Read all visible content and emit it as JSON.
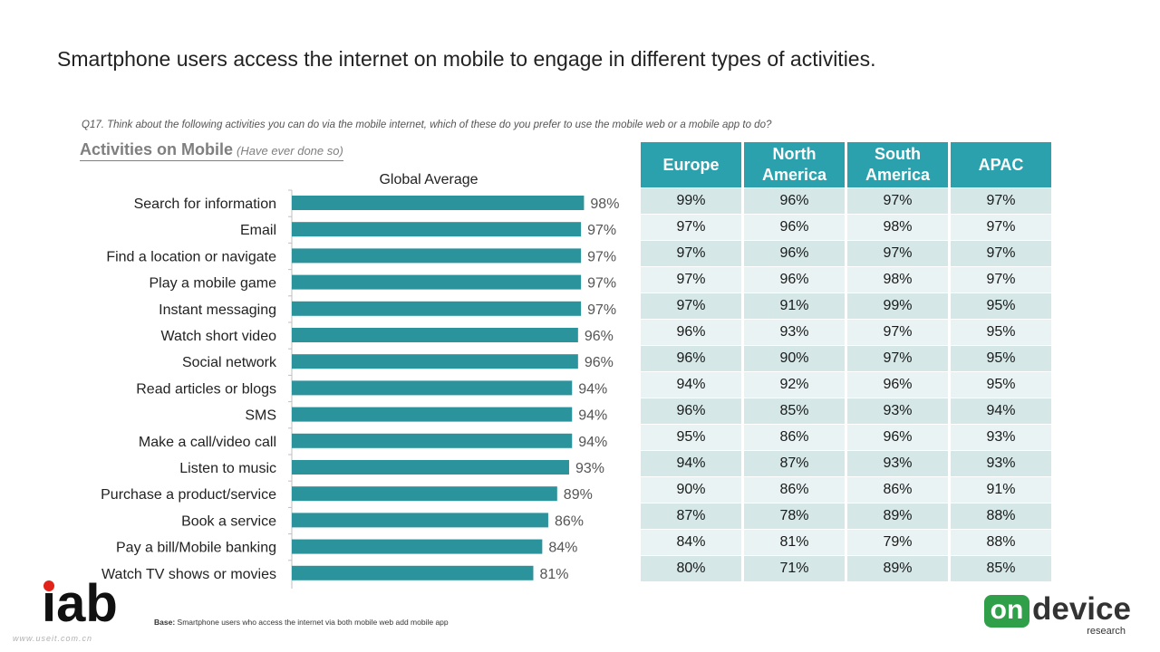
{
  "title": "Smartphone users access the internet on mobile to engage in different types of activities.",
  "question": "Q17. Think about the following activities you can do via the mobile internet, which of these do you prefer to use the mobile web or a mobile app to do?",
  "subtitle": {
    "main": "Activities on Mobile",
    "paren": "(Have ever done so)"
  },
  "colors": {
    "bar": "#2a939c",
    "table_header": "#2aa1ad",
    "row_odd": "#d5e7e7",
    "row_even": "#e9f3f3",
    "iab_dot": "#e2231a",
    "ondevice_green": "#2f9f4a"
  },
  "chart_data": {
    "type": "bar",
    "orientation": "horizontal",
    "title": "Global Average",
    "categories": [
      "Search for information",
      "Email",
      "Find a location or navigate",
      "Play a mobile game",
      "Instant messaging",
      "Watch short video",
      "Social network",
      "Read articles or blogs",
      "SMS",
      "Make a call/video call",
      "Listen to music",
      "Purchase a product/service",
      "Book a service",
      "Pay a bill/Mobile banking",
      "Watch TV shows or movies"
    ],
    "values": [
      98,
      97,
      97,
      97,
      97,
      96,
      96,
      94,
      94,
      94,
      93,
      89,
      86,
      84,
      81
    ],
    "value_labels": [
      "98%",
      "97%",
      "97%",
      "97%",
      "97%",
      "96%",
      "96%",
      "94%",
      "94%",
      "94%",
      "93%",
      "89%",
      "86%",
      "84%",
      "81%"
    ],
    "xlim": [
      0,
      100
    ]
  },
  "region_table": {
    "headers": [
      "Europe",
      "North America",
      "South America",
      "APAC"
    ],
    "rows": [
      [
        "99%",
        "96%",
        "97%",
        "97%"
      ],
      [
        "97%",
        "96%",
        "98%",
        "97%"
      ],
      [
        "97%",
        "96%",
        "97%",
        "97%"
      ],
      [
        "97%",
        "96%",
        "98%",
        "97%"
      ],
      [
        "97%",
        "91%",
        "99%",
        "95%"
      ],
      [
        "96%",
        "93%",
        "97%",
        "95%"
      ],
      [
        "96%",
        "90%",
        "97%",
        "95%"
      ],
      [
        "94%",
        "92%",
        "96%",
        "95%"
      ],
      [
        "96%",
        "85%",
        "93%",
        "94%"
      ],
      [
        "95%",
        "86%",
        "96%",
        "93%"
      ],
      [
        "94%",
        "87%",
        "93%",
        "93%"
      ],
      [
        "90%",
        "86%",
        "86%",
        "91%"
      ],
      [
        "87%",
        "78%",
        "89%",
        "88%"
      ],
      [
        "84%",
        "81%",
        "79%",
        "88%"
      ],
      [
        "80%",
        "71%",
        "89%",
        "85%"
      ]
    ]
  },
  "footer": {
    "iab_logo": "iab",
    "base_label": "Base:",
    "base_text": "Smartphone users who access the internet via both mobile web add mobile app",
    "watermark": "www.useit.com.cn",
    "ondevice_badge": "on",
    "ondevice_word": "device",
    "ondevice_sub": "research"
  }
}
